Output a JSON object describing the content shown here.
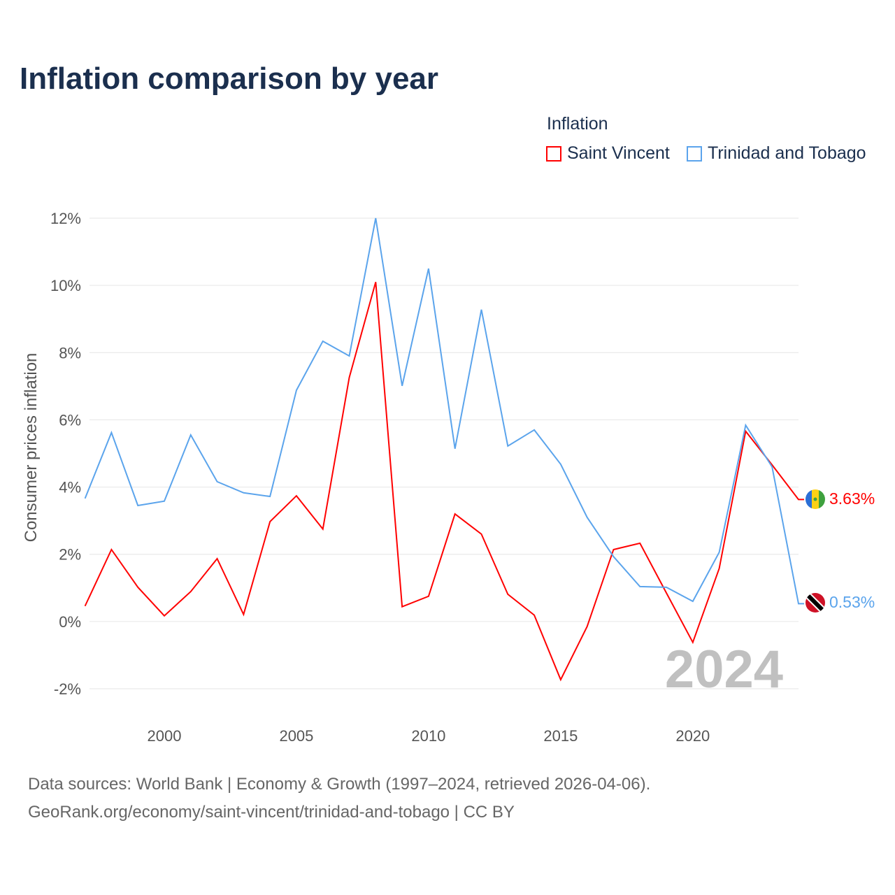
{
  "title": "Inflation comparison by year",
  "legend": {
    "title": "Inflation",
    "items": [
      {
        "label": "Saint Vincent",
        "color": "#ff0000"
      },
      {
        "label": "Trinidad and Tobago",
        "color": "#5ba4ec"
      }
    ]
  },
  "year_watermark": "2024",
  "footer": {
    "line1": "Data sources: World Bank | Economy & Growth (1997–2024, retrieved 2026-04-06).",
    "line2": "GeoRank.org/economy/saint-vincent/trinidad-and-tobago | CC BY"
  },
  "chart_data": {
    "type": "line",
    "title": "Inflation comparison by year",
    "xlabel": "",
    "ylabel": "Consumer prices inflation",
    "xlim": [
      1997,
      2024
    ],
    "ylim": [
      -2,
      12
    ],
    "x_ticks": [
      2000,
      2005,
      2010,
      2015,
      2020
    ],
    "y_ticks": [
      -2,
      0,
      2,
      4,
      6,
      8,
      10,
      12
    ],
    "y_tick_labels": [
      "-2%",
      "0%",
      "2%",
      "4%",
      "6%",
      "8%",
      "10%",
      "12%"
    ],
    "x": [
      1997,
      1998,
      1999,
      2000,
      2001,
      2002,
      2003,
      2004,
      2005,
      2006,
      2007,
      2008,
      2009,
      2010,
      2011,
      2012,
      2013,
      2014,
      2015,
      2016,
      2017,
      2018,
      2019,
      2020,
      2021,
      2022,
      2023,
      2024
    ],
    "series": [
      {
        "name": "Saint Vincent",
        "color": "#ff0000",
        "end_label": "3.63%",
        "values": [
          0.46,
          2.14,
          1.02,
          0.17,
          0.89,
          1.87,
          0.21,
          2.97,
          3.74,
          2.75,
          7.26,
          10.1,
          0.44,
          0.75,
          3.2,
          2.6,
          0.81,
          0.19,
          -1.73,
          -0.15,
          2.14,
          2.33,
          0.85,
          -0.62,
          1.58,
          5.66,
          4.66,
          3.63
        ]
      },
      {
        "name": "Trinidad and Tobago",
        "color": "#5ba4ec",
        "end_label": "0.53%",
        "values": [
          3.66,
          5.62,
          3.45,
          3.58,
          5.55,
          4.16,
          3.83,
          3.72,
          6.88,
          8.34,
          7.9,
          12.0,
          7.01,
          10.5,
          5.14,
          9.28,
          5.22,
          5.7,
          4.68,
          3.1,
          1.93,
          1.04,
          1.02,
          0.6,
          2.06,
          5.84,
          4.6,
          0.53
        ]
      }
    ],
    "grid": true
  }
}
